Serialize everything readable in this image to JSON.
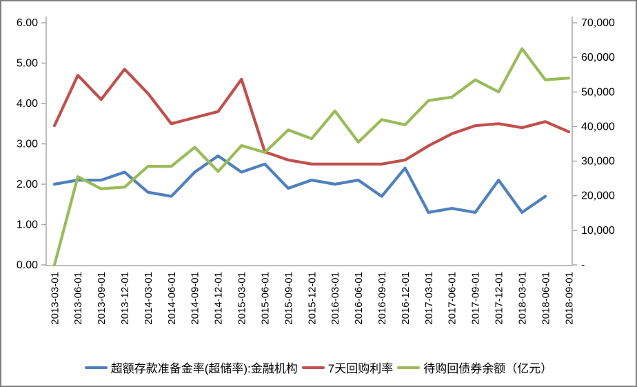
{
  "chart_data": {
    "type": "line",
    "title": "",
    "xlabel": "",
    "ylabel_left": "",
    "ylabel_right": "",
    "grid": false,
    "legend_position": "bottom",
    "categories": [
      "2013-03-01",
      "2013-06-01",
      "2013-09-01",
      "2013-12-01",
      "2014-03-01",
      "2014-06-01",
      "2014-09-01",
      "2014-12-01",
      "2015-03-01",
      "2015-06-01",
      "2015-09-01",
      "2015-12-01",
      "2016-03-01",
      "2016-06-01",
      "2016-09-01",
      "2016-12-01",
      "2017-03-01",
      "2017-06-01",
      "2017-09-01",
      "2017-12-01",
      "2018-03-01",
      "2018-06-01",
      "2018-09-01"
    ],
    "series": [
      {
        "name": "超额存款准备金率(超储率):金融机构",
        "axis": "left",
        "color": "#4F81BD",
        "values": [
          2.0,
          2.1,
          2.1,
          2.3,
          1.8,
          1.7,
          2.3,
          2.7,
          2.3,
          2.5,
          1.9,
          2.1,
          2.0,
          2.1,
          1.7,
          2.4,
          1.3,
          1.4,
          1.3,
          2.1,
          1.3,
          1.7,
          null
        ]
      },
      {
        "name": "7天回购利率",
        "axis": "left",
        "color": "#C0504D",
        "values": [
          3.45,
          4.7,
          4.1,
          4.85,
          4.25,
          3.5,
          3.65,
          3.8,
          4.6,
          2.8,
          2.6,
          2.5,
          2.5,
          2.5,
          2.5,
          2.6,
          2.95,
          3.25,
          3.45,
          3.5,
          3.4,
          3.55,
          3.3
        ]
      },
      {
        "name": "待购回债券余额（亿元）",
        "axis": "right",
        "color": "#9BBB59",
        "values": [
          0,
          25500,
          22000,
          22500,
          28500,
          28500,
          34000,
          27000,
          34500,
          32500,
          39000,
          36500,
          44500,
          35500,
          42000,
          40500,
          47500,
          48500,
          53500,
          50000,
          62500,
          53500,
          54000
        ]
      }
    ],
    "left_axis": {
      "min": 0,
      "max": 6,
      "step": 1,
      "tick_labels": [
        "0.00",
        "1.00",
        "2.00",
        "3.00",
        "4.00",
        "5.00",
        "6.00"
      ]
    },
    "right_axis": {
      "min": 0,
      "max": 70000,
      "step": 10000,
      "tick_labels": [
        "-",
        "10,000",
        "20,000",
        "30,000",
        "40,000",
        "50,000",
        "60,000",
        "70,000"
      ]
    },
    "axis_color": "#a6a6a6",
    "text_color": "#000000"
  }
}
